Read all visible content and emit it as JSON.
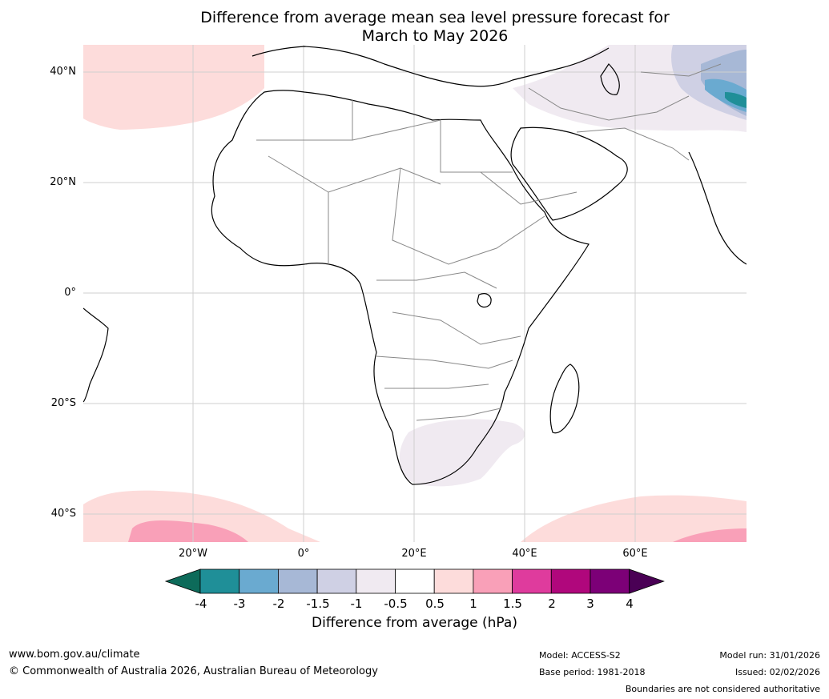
{
  "title": {
    "line1": "Difference from average mean sea level pressure forecast for",
    "line2": "March to May 2026"
  },
  "map": {
    "lat_labels": [
      "40°N",
      "20°N",
      "0°",
      "20°S",
      "40°S"
    ],
    "lon_labels": [
      "20°W",
      "0°",
      "20°E",
      "40°E",
      "60°E"
    ],
    "region": "Africa, Middle East and surrounding oceans"
  },
  "colorbar": {
    "ticks": [
      "-4",
      "-3",
      "-2",
      "-1.5",
      "-1",
      "-0.5",
      "0.5",
      "1",
      "1.5",
      "2",
      "3",
      "4"
    ],
    "colors": {
      "lt_-4": "#0d6b5a",
      "-4_-3": "#1f8f98",
      "-3_-2": "#6aaad0",
      "-2_-1.5": "#a7b8d6",
      "-1.5_-1": "#cfd0e4",
      "-1_-0.5": "#f0eaf1",
      "-0.5_0.5": "#ffffff",
      "0.5_1": "#fddcdb",
      "1_1.5": "#f9a0b8",
      "1.5_2": "#df3b9d",
      "2_3": "#b0077c",
      "3_4": "#7c0077",
      "gt_4": "#4a0055"
    },
    "label": "Difference from average (hPa)"
  },
  "footer": {
    "website": "www.bom.gov.au/climate",
    "copyright": "© Commonwealth of Australia 2026, Australian Bureau of Meteorology",
    "model": "Model: ACCESS-S2",
    "base_period": "Base period: 1981-2018",
    "model_run": "Model run: 31/01/2026",
    "issued": "Issued: 02/02/2026",
    "disclaimer": "Boundaries are not considered authoritative"
  }
}
